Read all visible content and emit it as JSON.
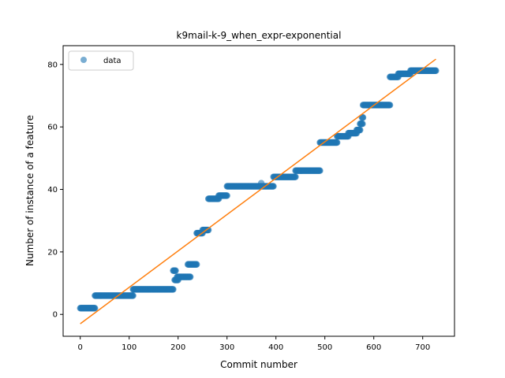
{
  "chart_data": {
    "type": "scatter",
    "title": "k9mail-k-9_when_expr-exponential",
    "xlabel": "Commit number",
    "ylabel": "Number of instance of a feature",
    "xlim": [
      -35,
      765
    ],
    "ylim": [
      -7,
      86
    ],
    "xticks": [
      0,
      100,
      200,
      300,
      400,
      500,
      600,
      700
    ],
    "yticks": [
      0,
      20,
      40,
      60,
      80
    ],
    "grid": false,
    "legend": {
      "position": "top-left",
      "entries": [
        "data"
      ]
    },
    "colors": {
      "data": "#1f77b4",
      "fit": "#ff7f0e"
    },
    "series": [
      {
        "name": "data",
        "style": "markers",
        "steps": [
          {
            "x0": 0,
            "x1": 30,
            "y": 2
          },
          {
            "x0": 30,
            "x1": 108,
            "y": 6
          },
          {
            "x0": 108,
            "x1": 190,
            "y": 8
          },
          {
            "x0": 190,
            "x1": 195,
            "y": 14
          },
          {
            "x0": 193,
            "x1": 200,
            "y": 11
          },
          {
            "x0": 198,
            "x1": 225,
            "y": 12
          },
          {
            "x0": 220,
            "x1": 238,
            "y": 16
          },
          {
            "x0": 238,
            "x1": 250,
            "y": 26
          },
          {
            "x0": 250,
            "x1": 262,
            "y": 27
          },
          {
            "x0": 262,
            "x1": 283,
            "y": 37
          },
          {
            "x0": 283,
            "x1": 300,
            "y": 38
          },
          {
            "x0": 300,
            "x1": 395,
            "y": 41
          },
          {
            "x0": 395,
            "x1": 440,
            "y": 44
          },
          {
            "x0": 440,
            "x1": 490,
            "y": 46
          },
          {
            "x0": 490,
            "x1": 525,
            "y": 55
          },
          {
            "x0": 525,
            "x1": 548,
            "y": 57
          },
          {
            "x0": 548,
            "x1": 565,
            "y": 58
          },
          {
            "x0": 565,
            "x1": 572,
            "y": 59
          },
          {
            "x0": 572,
            "x1": 577,
            "y": 61
          },
          {
            "x0": 576,
            "x1": 578,
            "y": 63
          },
          {
            "x0": 578,
            "x1": 633,
            "y": 67
          },
          {
            "x0": 633,
            "x1": 650,
            "y": 76
          },
          {
            "x0": 650,
            "x1": 675,
            "y": 77
          },
          {
            "x0": 675,
            "x1": 727,
            "y": 78
          }
        ],
        "outliers": [
          {
            "x": 370,
            "y": 42
          }
        ]
      },
      {
        "name": "fit",
        "style": "line",
        "x": [
          0,
          727
        ],
        "y": [
          -3,
          81.7
        ]
      }
    ]
  }
}
